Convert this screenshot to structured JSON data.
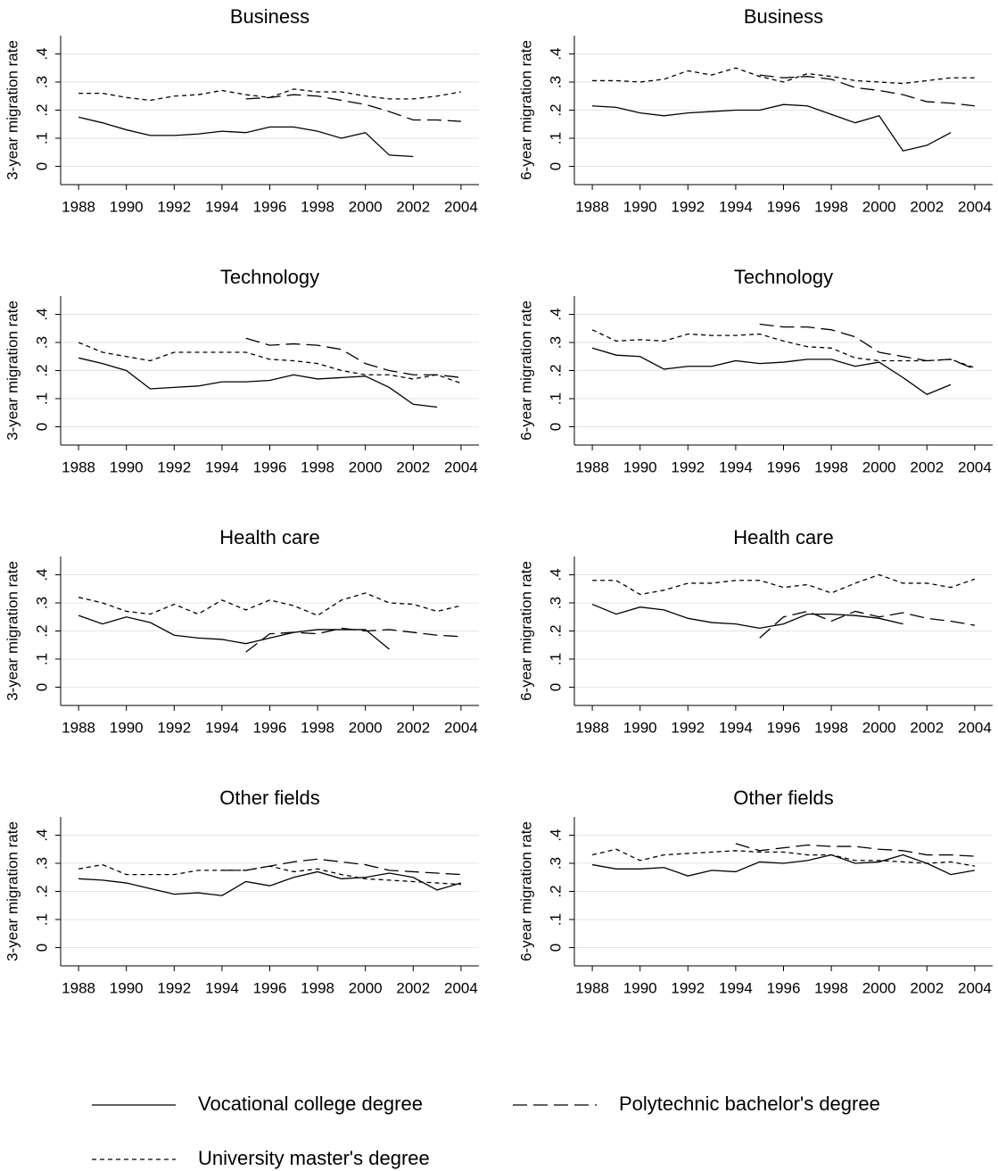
{
  "chart_data": [
    {
      "type": "line",
      "title": "Business",
      "ylabel": "3-year migration rate",
      "x": [
        1988,
        1989,
        1990,
        1991,
        1992,
        1993,
        1994,
        1995,
        1996,
        1997,
        1998,
        1999,
        2000,
        2001,
        2002,
        2003,
        2004
      ],
      "xlim": [
        1987.25,
        2004.75
      ],
      "xticks": [
        1988,
        1990,
        1992,
        1994,
        1996,
        1998,
        2000,
        2002,
        2004
      ],
      "ylim": [
        -0.065,
        0.465
      ],
      "yticks": [
        0,
        {
          "value": 0.1,
          "label": ".1"
        },
        {
          "value": 0.2,
          "label": ".2"
        },
        {
          "value": 0.3,
          "label": ".3"
        },
        {
          "value": 0.4,
          "label": ".4"
        }
      ],
      "grid": true,
      "series": [
        {
          "name": "Vocational college degree",
          "color": "#000000",
          "dash": "solid",
          "values": [
            0.175,
            0.155,
            0.13,
            0.11,
            0.11,
            0.115,
            0.125,
            0.12,
            0.14,
            0.14,
            0.125,
            0.1,
            0.12,
            0.04,
            0.035,
            null,
            null
          ]
        },
        {
          "name": "Polytechnic bachelor's degree",
          "color": "#000000",
          "dash": "long",
          "values": [
            null,
            null,
            null,
            null,
            null,
            null,
            null,
            0.24,
            0.245,
            0.255,
            0.25,
            0.235,
            0.22,
            0.195,
            0.165,
            0.165,
            0.16
          ]
        },
        {
          "name": "University master's degree",
          "color": "#000000",
          "dash": "short",
          "values": [
            0.26,
            0.26,
            0.245,
            0.235,
            0.25,
            0.255,
            0.27,
            0.255,
            0.245,
            0.275,
            0.265,
            0.265,
            0.25,
            0.24,
            0.24,
            0.25,
            0.265
          ]
        }
      ]
    },
    {
      "type": "line",
      "title": "Business",
      "ylabel": "6-year migration rate",
      "x": [
        1988,
        1989,
        1990,
        1991,
        1992,
        1993,
        1994,
        1995,
        1996,
        1997,
        1998,
        1999,
        2000,
        2001,
        2002,
        2003,
        2004
      ],
      "xlim": [
        1987.25,
        2004.75
      ],
      "xticks": [
        1988,
        1990,
        1992,
        1994,
        1996,
        1998,
        2000,
        2002,
        2004
      ],
      "ylim": [
        -0.065,
        0.465
      ],
      "yticks": [
        0,
        {
          "value": 0.1,
          "label": ".1"
        },
        {
          "value": 0.2,
          "label": ".2"
        },
        {
          "value": 0.3,
          "label": ".3"
        },
        {
          "value": 0.4,
          "label": ".4"
        }
      ],
      "grid": true,
      "series": [
        {
          "color": "#000000",
          "dash": "solid",
          "values": [
            0.215,
            0.21,
            0.19,
            0.18,
            0.19,
            0.195,
            0.2,
            0.2,
            0.22,
            0.215,
            0.185,
            0.155,
            0.18,
            0.055,
            0.075,
            0.12,
            null
          ]
        },
        {
          "color": "#000000",
          "dash": "long",
          "values": [
            null,
            null,
            null,
            null,
            null,
            null,
            null,
            0.325,
            0.315,
            0.32,
            0.31,
            0.28,
            0.27,
            0.255,
            0.23,
            0.225,
            0.215
          ]
        },
        {
          "color": "#000000",
          "dash": "short",
          "values": [
            0.305,
            0.305,
            0.3,
            0.31,
            0.34,
            0.325,
            0.35,
            0.32,
            0.3,
            0.33,
            0.32,
            0.305,
            0.3,
            0.295,
            0.305,
            0.315,
            0.315
          ]
        }
      ]
    },
    {
      "type": "line",
      "title": "Technology",
      "ylabel": "3-year migration rate",
      "x": [
        1988,
        1989,
        1990,
        1991,
        1992,
        1993,
        1994,
        1995,
        1996,
        1997,
        1998,
        1999,
        2000,
        2001,
        2002,
        2003,
        2004
      ],
      "xlim": [
        1987.25,
        2004.75
      ],
      "xticks": [
        1988,
        1990,
        1992,
        1994,
        1996,
        1998,
        2000,
        2002,
        2004
      ],
      "ylim": [
        -0.065,
        0.465
      ],
      "yticks": [
        0,
        {
          "value": 0.1,
          "label": ".1"
        },
        {
          "value": 0.2,
          "label": ".2"
        },
        {
          "value": 0.3,
          "label": ".3"
        },
        {
          "value": 0.4,
          "label": ".4"
        }
      ],
      "grid": true,
      "series": [
        {
          "color": "#000000",
          "dash": "solid",
          "values": [
            0.245,
            0.225,
            0.2,
            0.135,
            0.14,
            0.145,
            0.16,
            0.16,
            0.165,
            0.185,
            0.17,
            0.175,
            0.18,
            0.14,
            0.08,
            0.07,
            null
          ]
        },
        {
          "color": "#000000",
          "dash": "long",
          "values": [
            null,
            null,
            null,
            null,
            null,
            null,
            null,
            0.315,
            0.29,
            0.295,
            0.29,
            0.275,
            0.225,
            0.2,
            0.185,
            0.185,
            0.175
          ]
        },
        {
          "color": "#000000",
          "dash": "short",
          "values": [
            0.3,
            0.265,
            0.25,
            0.235,
            0.265,
            0.265,
            0.265,
            0.265,
            0.24,
            0.235,
            0.225,
            0.2,
            0.185,
            0.185,
            0.17,
            0.185,
            0.155
          ]
        }
      ]
    },
    {
      "type": "line",
      "title": "Technology",
      "ylabel": "6-year migration rate",
      "x": [
        1988,
        1989,
        1990,
        1991,
        1992,
        1993,
        1994,
        1995,
        1996,
        1997,
        1998,
        1999,
        2000,
        2001,
        2002,
        2003,
        2004
      ],
      "xlim": [
        1987.25,
        2004.75
      ],
      "xticks": [
        1988,
        1990,
        1992,
        1994,
        1996,
        1998,
        2000,
        2002,
        2004
      ],
      "ylim": [
        -0.065,
        0.465
      ],
      "yticks": [
        0,
        {
          "value": 0.1,
          "label": ".1"
        },
        {
          "value": 0.2,
          "label": ".2"
        },
        {
          "value": 0.3,
          "label": ".3"
        },
        {
          "value": 0.4,
          "label": ".4"
        }
      ],
      "grid": true,
      "series": [
        {
          "color": "#000000",
          "dash": "solid",
          "values": [
            0.28,
            0.255,
            0.25,
            0.205,
            0.215,
            0.215,
            0.235,
            0.225,
            0.23,
            0.24,
            0.24,
            0.215,
            0.23,
            0.175,
            0.115,
            0.15,
            null
          ]
        },
        {
          "color": "#000000",
          "dash": "long",
          "values": [
            null,
            null,
            null,
            null,
            null,
            null,
            null,
            0.365,
            0.355,
            0.355,
            0.345,
            0.32,
            0.265,
            0.25,
            0.235,
            0.24,
            0.205
          ]
        },
        {
          "color": "#000000",
          "dash": "short",
          "values": [
            0.345,
            0.305,
            0.31,
            0.305,
            0.33,
            0.325,
            0.325,
            0.33,
            0.305,
            0.285,
            0.28,
            0.245,
            0.235,
            0.235,
            0.235,
            0.24,
            0.21
          ]
        }
      ]
    },
    {
      "type": "line",
      "title": "Health care",
      "ylabel": "3-year migration rate",
      "x": [
        1988,
        1989,
        1990,
        1991,
        1992,
        1993,
        1994,
        1995,
        1996,
        1997,
        1998,
        1999,
        2000,
        2001,
        2002,
        2003,
        2004
      ],
      "xlim": [
        1987.25,
        2004.75
      ],
      "xticks": [
        1988,
        1990,
        1992,
        1994,
        1996,
        1998,
        2000,
        2002,
        2004
      ],
      "ylim": [
        -0.065,
        0.465
      ],
      "yticks": [
        0,
        {
          "value": 0.1,
          "label": ".1"
        },
        {
          "value": 0.2,
          "label": ".2"
        },
        {
          "value": 0.3,
          "label": ".3"
        },
        {
          "value": 0.4,
          "label": ".4"
        }
      ],
      "grid": true,
      "series": [
        {
          "color": "#000000",
          "dash": "solid",
          "values": [
            0.255,
            0.225,
            0.25,
            0.23,
            0.185,
            0.175,
            0.17,
            0.155,
            0.175,
            0.195,
            0.205,
            0.205,
            0.205,
            0.135,
            null,
            null,
            null
          ]
        },
        {
          "color": "#000000",
          "dash": "long",
          "values": [
            null,
            null,
            null,
            null,
            null,
            null,
            null,
            0.125,
            0.19,
            0.195,
            0.19,
            0.21,
            0.2,
            0.205,
            0.195,
            0.185,
            0.18
          ]
        },
        {
          "color": "#000000",
          "dash": "short",
          "values": [
            0.32,
            0.3,
            0.27,
            0.26,
            0.295,
            0.26,
            0.31,
            0.275,
            0.31,
            0.29,
            0.255,
            0.31,
            0.335,
            0.3,
            0.295,
            0.27,
            0.29
          ]
        }
      ]
    },
    {
      "type": "line",
      "title": "Health care",
      "ylabel": "6-year migration rate",
      "x": [
        1988,
        1989,
        1990,
        1991,
        1992,
        1993,
        1994,
        1995,
        1996,
        1997,
        1998,
        1999,
        2000,
        2001,
        2002,
        2003,
        2004
      ],
      "xlim": [
        1987.25,
        2004.75
      ],
      "xticks": [
        1988,
        1990,
        1992,
        1994,
        1996,
        1998,
        2000,
        2002,
        2004
      ],
      "ylim": [
        -0.065,
        0.465
      ],
      "yticks": [
        0,
        {
          "value": 0.1,
          "label": ".1"
        },
        {
          "value": 0.2,
          "label": ".2"
        },
        {
          "value": 0.3,
          "label": ".3"
        },
        {
          "value": 0.4,
          "label": ".4"
        }
      ],
      "grid": true,
      "series": [
        {
          "color": "#000000",
          "dash": "solid",
          "values": [
            0.295,
            0.26,
            0.285,
            0.275,
            0.245,
            0.23,
            0.225,
            0.21,
            0.225,
            0.26,
            0.26,
            0.255,
            0.245,
            0.225,
            null,
            null,
            null
          ]
        },
        {
          "color": "#000000",
          "dash": "long",
          "values": [
            null,
            null,
            null,
            null,
            null,
            null,
            null,
            0.175,
            0.25,
            0.27,
            0.235,
            0.27,
            0.25,
            0.265,
            0.245,
            0.235,
            0.22
          ]
        },
        {
          "color": "#000000",
          "dash": "short",
          "values": [
            0.38,
            0.38,
            0.33,
            0.345,
            0.37,
            0.37,
            0.38,
            0.38,
            0.355,
            0.365,
            0.335,
            0.37,
            0.4,
            0.37,
            0.37,
            0.355,
            0.385
          ]
        }
      ]
    },
    {
      "type": "line",
      "title": "Other fields",
      "ylabel": "3-year migration rate",
      "x": [
        1988,
        1989,
        1990,
        1991,
        1992,
        1993,
        1994,
        1995,
        1996,
        1997,
        1998,
        1999,
        2000,
        2001,
        2002,
        2003,
        2004
      ],
      "xlim": [
        1987.25,
        2004.75
      ],
      "xticks": [
        1988,
        1990,
        1992,
        1994,
        1996,
        1998,
        2000,
        2002,
        2004
      ],
      "ylim": [
        -0.065,
        0.465
      ],
      "yticks": [
        0,
        {
          "value": 0.1,
          "label": ".1"
        },
        {
          "value": 0.2,
          "label": ".2"
        },
        {
          "value": 0.3,
          "label": ".3"
        },
        {
          "value": 0.4,
          "label": ".4"
        }
      ],
      "grid": true,
      "series": [
        {
          "color": "#000000",
          "dash": "solid",
          "values": [
            0.245,
            0.24,
            0.23,
            0.21,
            0.19,
            0.195,
            0.185,
            0.235,
            0.22,
            0.25,
            0.27,
            0.245,
            0.25,
            0.265,
            0.25,
            0.205,
            0.23
          ]
        },
        {
          "color": "#000000",
          "dash": "long",
          "values": [
            null,
            null,
            null,
            null,
            null,
            null,
            0.275,
            0.275,
            0.29,
            0.305,
            0.315,
            0.305,
            0.295,
            0.275,
            0.27,
            0.265,
            0.26
          ]
        },
        {
          "color": "#000000",
          "dash": "short",
          "values": [
            0.28,
            0.295,
            0.26,
            0.26,
            0.26,
            0.275,
            0.275,
            0.275,
            0.29,
            0.27,
            0.28,
            0.26,
            0.245,
            0.24,
            0.235,
            0.23,
            0.225
          ]
        }
      ]
    },
    {
      "type": "line",
      "title": "Other fields",
      "ylabel": "6-year migration rate",
      "x": [
        1988,
        1989,
        1990,
        1991,
        1992,
        1993,
        1994,
        1995,
        1996,
        1997,
        1998,
        1999,
        2000,
        2001,
        2002,
        2003,
        2004
      ],
      "xlim": [
        1987.25,
        2004.75
      ],
      "xticks": [
        1988,
        1990,
        1992,
        1994,
        1996,
        1998,
        2000,
        2002,
        2004
      ],
      "ylim": [
        -0.065,
        0.465
      ],
      "yticks": [
        0,
        {
          "value": 0.1,
          "label": ".1"
        },
        {
          "value": 0.2,
          "label": ".2"
        },
        {
          "value": 0.3,
          "label": ".3"
        },
        {
          "value": 0.4,
          "label": ".4"
        }
      ],
      "grid": true,
      "series": [
        {
          "color": "#000000",
          "dash": "solid",
          "values": [
            0.295,
            0.28,
            0.28,
            0.285,
            0.255,
            0.275,
            0.27,
            0.305,
            0.3,
            0.31,
            0.33,
            0.3,
            0.305,
            0.33,
            0.3,
            0.26,
            0.275
          ]
        },
        {
          "color": "#000000",
          "dash": "long",
          "values": [
            null,
            null,
            null,
            null,
            null,
            null,
            0.37,
            0.345,
            0.355,
            0.365,
            0.36,
            0.36,
            0.35,
            0.345,
            0.33,
            0.33,
            0.325
          ]
        },
        {
          "color": "#000000",
          "dash": "short",
          "values": [
            0.33,
            0.35,
            0.31,
            0.33,
            0.335,
            0.34,
            0.345,
            0.34,
            0.34,
            0.33,
            0.33,
            0.31,
            0.31,
            0.305,
            0.3,
            0.305,
            0.29
          ]
        }
      ]
    }
  ]
}
